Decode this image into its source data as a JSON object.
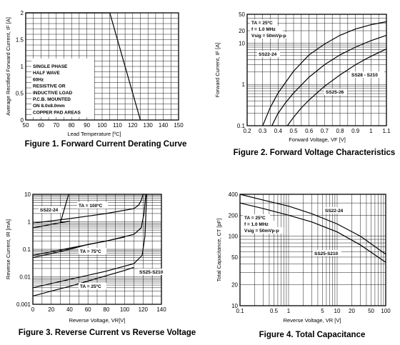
{
  "chart_data": [
    {
      "type": "line",
      "caption": "Figure 1. Forward Current Derating Curve",
      "xlabel": "Lead Temperature [ºC]",
      "ylabel": "Average Rectified Forward Current, IF [A]",
      "x_scale": "linear",
      "y_scale": "linear",
      "xlim": [
        50,
        150
      ],
      "ylim": [
        0,
        2
      ],
      "xticks": [
        50,
        60,
        70,
        80,
        90,
        100,
        110,
        120,
        130,
        140,
        150
      ],
      "yticks": [
        0,
        0.5,
        1,
        1.5,
        2
      ],
      "x_tick_labels": [
        "50",
        "60",
        "70",
        "80",
        "90",
        "100",
        "110",
        "120",
        "130",
        "140",
        "150"
      ],
      "y_tick_labels": [
        "0",
        "0.5",
        "1",
        "1.5",
        "2"
      ],
      "grid": true,
      "notes": [
        "SINGLE PHASE",
        "HALF WAVE",
        "60Hz",
        "RESISTIVE OR",
        "INDUCTIVE LOAD",
        "P.C.B. MOUNTED",
        "ON 8.0x8.0mm",
        "COPPER PAD AREAS"
      ],
      "series": [
        {
          "x": [
            50,
            105,
            125
          ],
          "y": [
            2,
            2,
            0
          ]
        }
      ]
    },
    {
      "type": "line",
      "caption": "Figure 2. Forward Voltage Characteristics",
      "xlabel": "Forward Voltage, VF [V]",
      "ylabel": "Forward Current, IF [A]",
      "x_scale": "linear",
      "y_scale": "log",
      "xlim": [
        0.2,
        1.1
      ],
      "ylim": [
        0.1,
        50
      ],
      "xticks": [
        0.2,
        0.3,
        0.4,
        0.5,
        0.6,
        0.7,
        0.8,
        0.9,
        1.0,
        1.1
      ],
      "yticks": [
        0.1,
        1,
        10,
        20,
        50
      ],
      "x_tick_labels": [
        "0.2",
        "0.3",
        "0.4",
        "0.5",
        "0.6",
        "0.7",
        "0.8",
        "0.9",
        "1",
        "1.1"
      ],
      "y_tick_labels": [
        "0.1",
        "1",
        "10",
        "20",
        "50"
      ],
      "grid": true,
      "notes": [
        "TA = 25ºC",
        "f = 1.0 MHz",
        "Vsig = 50mVp-p"
      ],
      "series": [
        {
          "name": "SS22-24",
          "x": [
            0.3,
            0.35,
            0.4,
            0.5,
            0.6,
            0.7,
            0.8,
            0.9,
            1.0,
            1.1
          ],
          "y": [
            0.1,
            0.28,
            0.62,
            2.1,
            5.2,
            9.5,
            15.5,
            22,
            28,
            33
          ]
        },
        {
          "name": "SS25-26",
          "x": [
            0.36,
            0.4,
            0.45,
            0.5,
            0.6,
            0.7,
            0.8,
            0.9,
            1.0,
            1.1
          ],
          "y": [
            0.1,
            0.2,
            0.37,
            0.62,
            1.5,
            3.0,
            5.2,
            8.0,
            11.5,
            15.5
          ]
        },
        {
          "name": "SS28 - S210",
          "x": [
            0.46,
            0.5,
            0.55,
            0.6,
            0.7,
            0.8,
            0.9,
            1.0,
            1.1
          ],
          "y": [
            0.1,
            0.16,
            0.27,
            0.42,
            0.9,
            1.7,
            3.0,
            4.8,
            7.2
          ]
        }
      ]
    },
    {
      "type": "line",
      "caption": "Figure 3. Reverse Current vs Reverse Voltage",
      "xlabel": "Reverse Voltage, VR[V]",
      "ylabel": "Reverse Current, IR [mA]",
      "x_scale": "linear",
      "y_scale": "log",
      "xlim": [
        0,
        140
      ],
      "ylim": [
        0.001,
        10
      ],
      "xticks": [
        0,
        20,
        40,
        60,
        80,
        100,
        120,
        140
      ],
      "yticks": [
        0.001,
        0.01,
        0.1,
        1,
        10
      ],
      "x_tick_labels": [
        "0",
        "20",
        "40",
        "60",
        "80",
        "100",
        "120",
        "140"
      ],
      "y_tick_labels": [
        "0.001",
        "0.01",
        "0.1",
        "1",
        "10"
      ],
      "grid": true,
      "notes": [
        "TA = 100ºC",
        "TA = 75ºC",
        "TA = 25ºC"
      ],
      "series": [
        {
          "name": "SS22-24",
          "x": [
            0,
            20,
            40,
            30,
            39
          ],
          "y": [
            0.6,
            0.8,
            1.05,
            0.95,
            10
          ]
        },
        {
          "name": "SS25-S210",
          "x": [
            0,
            40,
            80,
            110,
            115,
            118,
            120,
            122
          ],
          "y": [
            0.9,
            1.3,
            2.0,
            3.0,
            4.0,
            6.0,
            10,
            10
          ]
        },
        {
          "name": "SS22-24",
          "x": [
            0,
            20,
            40,
            60,
            80,
            100
          ],
          "y": [
            0.05,
            0.07,
            0.1,
            0.15,
            0.2,
            0.28
          ]
        },
        {
          "name": "SS25-S210",
          "x": [
            0,
            40,
            80,
            110,
            118,
            121,
            123
          ],
          "y": [
            0.06,
            0.11,
            0.2,
            0.35,
            0.6,
            2.0,
            10
          ]
        },
        {
          "name": "SS22-24",
          "x": [
            0,
            20,
            40,
            60,
            80,
            100,
            110
          ],
          "y": [
            0.002,
            0.003,
            0.0045,
            0.007,
            0.011,
            0.017,
            0.022
          ]
        },
        {
          "name": "SS25-S210",
          "x": [
            0,
            40,
            80,
            110,
            119,
            122,
            124
          ],
          "y": [
            0.004,
            0.008,
            0.016,
            0.03,
            0.06,
            0.3,
            10
          ]
        }
      ]
    },
    {
      "type": "line",
      "caption": "Figure 4. Total Capacitance",
      "xlabel": "Reverse Voltage, VR [V]",
      "ylabel": "Total Capacitance, CT [pF]",
      "x_scale": "log",
      "y_scale": "log",
      "xlim": [
        0.1,
        100
      ],
      "ylim": [
        10,
        400
      ],
      "xticks": [
        0.1,
        0.5,
        1,
        5,
        10,
        20,
        50,
        100
      ],
      "yticks": [
        10,
        20,
        50,
        100,
        200,
        400
      ],
      "x_tick_labels": [
        "0.1",
        "0.5",
        "1",
        "5",
        "10",
        "20",
        "50",
        "100"
      ],
      "y_tick_labels": [
        "10",
        "20",
        "50",
        "100",
        "200",
        "400"
      ],
      "grid": true,
      "notes": [
        "TA = 25ºC",
        "f = 1.0 MHz",
        "Vsig = 50mVp-p"
      ],
      "series": [
        {
          "name": "SS22-24",
          "x": [
            0.1,
            0.3,
            1,
            3,
            10,
            30,
            100
          ],
          "y": [
            400,
            330,
            270,
            210,
            150,
            100,
            55
          ]
        },
        {
          "name": "SS25-S210",
          "x": [
            0.1,
            0.3,
            1,
            3,
            10,
            30,
            100
          ],
          "y": [
            300,
            250,
            200,
            160,
            115,
            75,
            42
          ]
        }
      ]
    }
  ]
}
